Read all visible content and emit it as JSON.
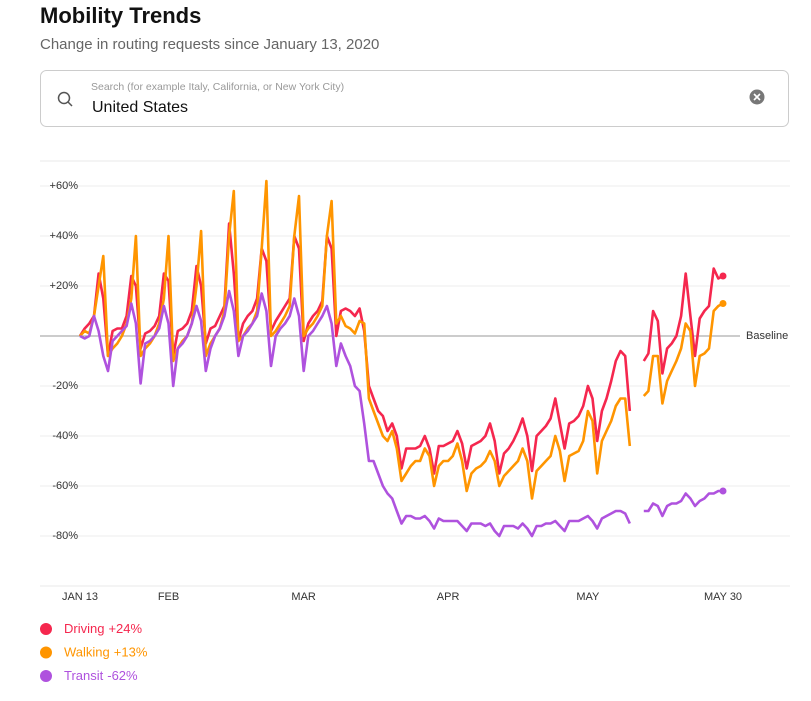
{
  "header": {
    "title": "Mobility Trends",
    "subtitle": "Change in routing requests since January 13, 2020"
  },
  "search": {
    "placeholder": "Search (for example Italy, California, or New York City)",
    "value": "United States"
  },
  "chart_data": {
    "type": "line",
    "x": [
      "2020-01-13",
      "2020-01-14",
      "2020-01-15",
      "2020-01-16",
      "2020-01-17",
      "2020-01-18",
      "2020-01-19",
      "2020-01-20",
      "2020-01-21",
      "2020-01-22",
      "2020-01-23",
      "2020-01-24",
      "2020-01-25",
      "2020-01-26",
      "2020-01-27",
      "2020-01-28",
      "2020-01-29",
      "2020-01-30",
      "2020-01-31",
      "2020-02-01",
      "2020-02-02",
      "2020-02-03",
      "2020-02-04",
      "2020-02-05",
      "2020-02-06",
      "2020-02-07",
      "2020-02-08",
      "2020-02-09",
      "2020-02-10",
      "2020-02-11",
      "2020-02-12",
      "2020-02-13",
      "2020-02-14",
      "2020-02-15",
      "2020-02-16",
      "2020-02-17",
      "2020-02-18",
      "2020-02-19",
      "2020-02-20",
      "2020-02-21",
      "2020-02-22",
      "2020-02-23",
      "2020-02-24",
      "2020-02-25",
      "2020-02-26",
      "2020-02-27",
      "2020-02-28",
      "2020-02-29",
      "2020-03-01",
      "2020-03-02",
      "2020-03-03",
      "2020-03-04",
      "2020-03-05",
      "2020-03-06",
      "2020-03-07",
      "2020-03-08",
      "2020-03-09",
      "2020-03-10",
      "2020-03-11",
      "2020-03-12",
      "2020-03-13",
      "2020-03-14",
      "2020-03-15",
      "2020-03-16",
      "2020-03-17",
      "2020-03-18",
      "2020-03-19",
      "2020-03-20",
      "2020-03-21",
      "2020-03-22",
      "2020-03-23",
      "2020-03-24",
      "2020-03-25",
      "2020-03-26",
      "2020-03-27",
      "2020-03-28",
      "2020-03-29",
      "2020-03-30",
      "2020-03-31",
      "2020-04-01",
      "2020-04-02",
      "2020-04-03",
      "2020-04-04",
      "2020-04-05",
      "2020-04-06",
      "2020-04-07",
      "2020-04-08",
      "2020-04-09",
      "2020-04-10",
      "2020-04-11",
      "2020-04-12",
      "2020-04-13",
      "2020-04-14",
      "2020-04-15",
      "2020-04-16",
      "2020-04-17",
      "2020-04-18",
      "2020-04-19",
      "2020-04-20",
      "2020-04-21",
      "2020-04-22",
      "2020-04-23",
      "2020-04-24",
      "2020-04-25",
      "2020-04-26",
      "2020-04-27",
      "2020-04-28",
      "2020-04-29",
      "2020-04-30",
      "2020-05-01",
      "2020-05-02",
      "2020-05-03",
      "2020-05-04",
      "2020-05-05",
      "2020-05-06",
      "2020-05-07",
      "2020-05-08",
      "2020-05-09",
      "2020-05-10",
      "2020-05-11",
      "2020-05-12",
      "2020-05-13",
      "2020-05-14",
      "2020-05-15",
      "2020-05-16",
      "2020-05-17",
      "2020-05-18",
      "2020-05-19",
      "2020-05-20",
      "2020-05-21",
      "2020-05-22",
      "2020-05-23",
      "2020-05-24",
      "2020-05-25",
      "2020-05-26",
      "2020-05-27",
      "2020-05-28",
      "2020-05-29",
      "2020-05-30"
    ],
    "series": [
      {
        "name": "Driving",
        "change": "+24%",
        "color": "#f5274e",
        "values": [
          0,
          3,
          5,
          8,
          25,
          15,
          -8,
          2,
          3,
          3,
          8,
          24,
          20,
          -5,
          1,
          2,
          4,
          8,
          25,
          22,
          -8,
          2,
          3,
          5,
          10,
          28,
          20,
          -3,
          3,
          4,
          8,
          12,
          45,
          25,
          -2,
          5,
          8,
          10,
          15,
          35,
          30,
          2,
          6,
          9,
          12,
          15,
          40,
          35,
          -2,
          5,
          8,
          10,
          14,
          40,
          35,
          0,
          10,
          11,
          10,
          8,
          11,
          2,
          -20,
          -25,
          -30,
          -32,
          -38,
          -35,
          -40,
          -53,
          -45,
          -45,
          -45,
          -44,
          -40,
          -45,
          -55,
          -44,
          -44,
          -43,
          -42,
          -38,
          -43,
          -53,
          -44,
          -43,
          -42,
          -40,
          -35,
          -42,
          -55,
          -47,
          -45,
          -42,
          -38,
          -33,
          -40,
          -54,
          -40,
          -38,
          -36,
          -33,
          -25,
          -35,
          -45,
          -35,
          -34,
          -32,
          -28,
          -20,
          -25,
          -42,
          -30,
          -25,
          -18,
          -10,
          -6,
          -8,
          -30,
          null,
          null,
          -10,
          -7,
          10,
          6,
          -15,
          -5,
          -3,
          0,
          8,
          25,
          8,
          -8,
          7,
          10,
          12,
          27,
          23,
          24
        ]
      },
      {
        "name": "Walking",
        "change": "+13%",
        "color": "#ff9500",
        "values": [
          0,
          2,
          1,
          8,
          20,
          32,
          -8,
          -5,
          -3,
          0,
          5,
          15,
          40,
          -8,
          -5,
          -3,
          0,
          5,
          15,
          40,
          -10,
          -5,
          -2,
          0,
          5,
          20,
          42,
          -8,
          -3,
          0,
          3,
          10,
          40,
          58,
          -2,
          0,
          3,
          5,
          10,
          35,
          62,
          0,
          2,
          5,
          8,
          12,
          40,
          56,
          0,
          3,
          5,
          8,
          12,
          40,
          54,
          5,
          8,
          4,
          3,
          1,
          6,
          5,
          -25,
          -30,
          -35,
          -40,
          -42,
          -38,
          -45,
          -58,
          -55,
          -52,
          -50,
          -50,
          -45,
          -48,
          -60,
          -52,
          -50,
          -50,
          -48,
          -43,
          -50,
          -62,
          -55,
          -53,
          -52,
          -50,
          -46,
          -50,
          -60,
          -56,
          -54,
          -52,
          -50,
          -45,
          -50,
          -65,
          -54,
          -52,
          -50,
          -48,
          -40,
          -46,
          -58,
          -48,
          -47,
          -46,
          -42,
          -30,
          -34,
          -55,
          -42,
          -38,
          -34,
          -28,
          -25,
          -25,
          -44,
          null,
          null,
          -24,
          -22,
          -8,
          -8,
          -27,
          -18,
          -14,
          -10,
          -5,
          5,
          2,
          -20,
          -8,
          -7,
          -5,
          10,
          12,
          13
        ]
      },
      {
        "name": "Transit",
        "change": "-62%",
        "color": "#af52de",
        "values": [
          0,
          -1,
          0,
          8,
          2,
          -8,
          -14,
          -2,
          0,
          2,
          4,
          13,
          5,
          -19,
          -3,
          -2,
          0,
          3,
          12,
          5,
          -20,
          -5,
          -3,
          0,
          5,
          12,
          6,
          -14,
          -5,
          0,
          3,
          8,
          18,
          10,
          -8,
          0,
          2,
          5,
          8,
          17,
          10,
          -12,
          0,
          3,
          5,
          8,
          15,
          8,
          -14,
          0,
          2,
          5,
          8,
          12,
          5,
          -12,
          -3,
          -8,
          -12,
          -20,
          -22,
          -35,
          -50,
          -50,
          -55,
          -60,
          -63,
          -65,
          -70,
          -75,
          -72,
          -72,
          -73,
          -73,
          -72,
          -74,
          -77,
          -73,
          -74,
          -74,
          -74,
          -74,
          -76,
          -78,
          -75,
          -75,
          -75,
          -76,
          -75,
          -78,
          -80,
          -76,
          -76,
          -76,
          -77,
          -75,
          -77,
          -80,
          -76,
          -76,
          -75,
          -75,
          -74,
          -76,
          -78,
          -74,
          -74,
          -74,
          -73,
          -72,
          -74,
          -77,
          -73,
          -72,
          -71,
          -70,
          -70,
          -71,
          -75,
          null,
          null,
          -70,
          -70,
          -67,
          -68,
          -72,
          -68,
          -67,
          -67,
          -66,
          -63,
          -65,
          -68,
          -66,
          -65,
          -63,
          -63,
          -62,
          -62
        ]
      }
    ],
    "xlim": [
      "2020-01-13",
      "2020-05-30"
    ],
    "xticks": [
      {
        "value": "2020-01-13",
        "label": "JAN 13"
      },
      {
        "value": "2020-02-01",
        "label": "FEB"
      },
      {
        "value": "2020-03-01",
        "label": "MAR"
      },
      {
        "value": "2020-04-01",
        "label": "APR"
      },
      {
        "value": "2020-05-01",
        "label": "MAY"
      },
      {
        "value": "2020-05-30",
        "label": "MAY 30"
      }
    ],
    "ylim": [
      -100,
      70
    ],
    "yticks": [
      {
        "value": 60,
        "label": "+60%"
      },
      {
        "value": 40,
        "label": "+40%"
      },
      {
        "value": 20,
        "label": "+20%"
      },
      {
        "value": -20,
        "label": "-20%"
      },
      {
        "value": -40,
        "label": "-40%"
      },
      {
        "value": -60,
        "label": "-60%"
      },
      {
        "value": -80,
        "label": "-80%"
      }
    ],
    "baseline": 0,
    "baseline_label": "Baseline",
    "grid": true
  }
}
